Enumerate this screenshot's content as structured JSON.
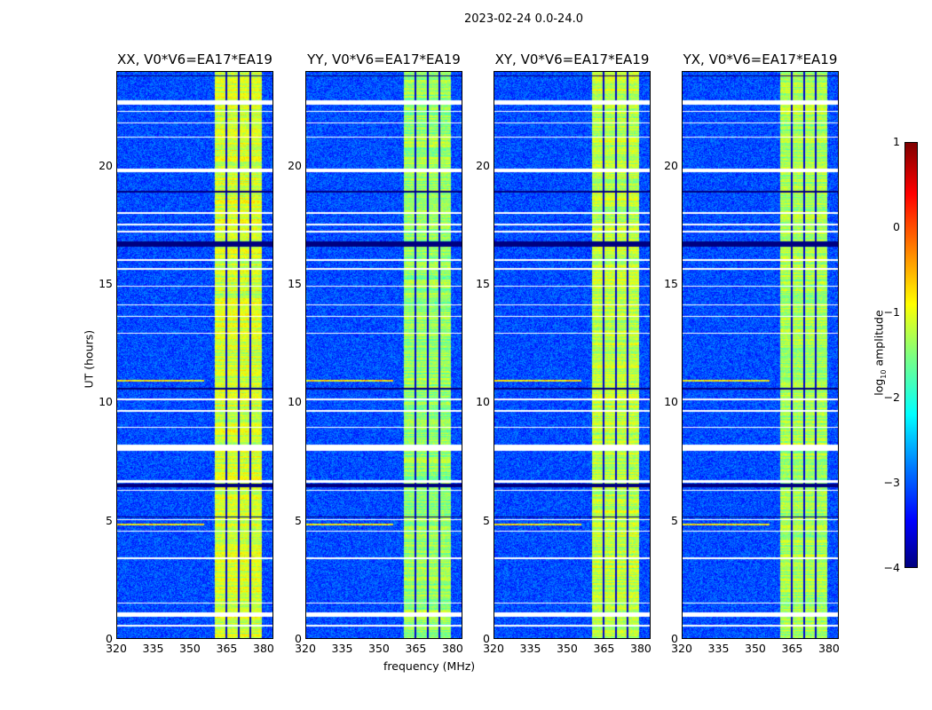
{
  "chart_data": {
    "type": "heatmap",
    "title": "2023-02-24 0.0-24.0",
    "xlabel": "frequency (MHz)",
    "ylabel": "UT (hours)",
    "xlim": [
      320,
      384
    ],
    "ylim": [
      0,
      24
    ],
    "xticks": [
      "320",
      "335",
      "350",
      "365",
      "380"
    ],
    "xtick_values": [
      320,
      335,
      350,
      365,
      380
    ],
    "yticks": [
      "0",
      "5",
      "10",
      "15",
      "20"
    ],
    "ytick_values": [
      0,
      5,
      10,
      15,
      20
    ],
    "panels": [
      {
        "title": "XX, V0*V6=EA17*EA19",
        "band_level": -1.1
      },
      {
        "title": "YY, V0*V6=EA17*EA19",
        "band_level": -1.4
      },
      {
        "title": "XY, V0*V6=EA17*EA19",
        "band_level": -1.2
      },
      {
        "title": "YX, V0*V6=EA17*EA19",
        "band_level": -1.3
      }
    ],
    "background_level": -3.0,
    "active_band_mhz": [
      360.4,
      379.5
    ],
    "band_subchannel_edges_mhz": [
      365,
      370,
      375
    ],
    "flagged_time_hours": [
      [
        0.9,
        1.1
      ],
      [
        0.5,
        0.55
      ],
      [
        1.45,
        1.5
      ],
      [
        3.35,
        3.42
      ],
      [
        4.5,
        4.55
      ],
      [
        5.0,
        5.05
      ],
      [
        6.25,
        6.3
      ],
      [
        6.6,
        6.7
      ],
      [
        7.95,
        8.2
      ],
      [
        8.9,
        8.95
      ],
      [
        9.6,
        9.65
      ],
      [
        10.1,
        10.15
      ],
      [
        12.9,
        12.95
      ],
      [
        13.6,
        13.65
      ],
      [
        14.1,
        14.15
      ],
      [
        14.9,
        14.95
      ],
      [
        15.6,
        15.7
      ],
      [
        16.0,
        16.05
      ],
      [
        17.2,
        17.25
      ],
      [
        17.5,
        17.55
      ],
      [
        18.0,
        18.05
      ],
      [
        19.75,
        19.9
      ],
      [
        21.2,
        21.25
      ],
      [
        21.8,
        21.85
      ],
      [
        22.3,
        22.35
      ],
      [
        22.6,
        22.8
      ]
    ],
    "dropout_time_hours": [
      [
        6.4,
        6.55
      ],
      [
        16.6,
        16.8
      ],
      [
        23.8,
        23.85
      ],
      [
        18.9,
        18.95
      ],
      [
        10.55,
        10.6
      ],
      [
        5.1,
        5.15
      ]
    ],
    "rfi_time_hours": [
      4.8,
      10.9
    ],
    "colorbar": {
      "label": "log10 amplitude",
      "label_main": "log",
      "label_sub": "10",
      "label_rest": " amplitude",
      "range": [
        -4,
        1
      ],
      "ticks": [
        "1",
        "0",
        "−1",
        "−2",
        "−3",
        "−4"
      ],
      "tick_values": [
        1,
        0,
        -1,
        -2,
        -3,
        -4
      ],
      "colormap": "jet"
    }
  }
}
